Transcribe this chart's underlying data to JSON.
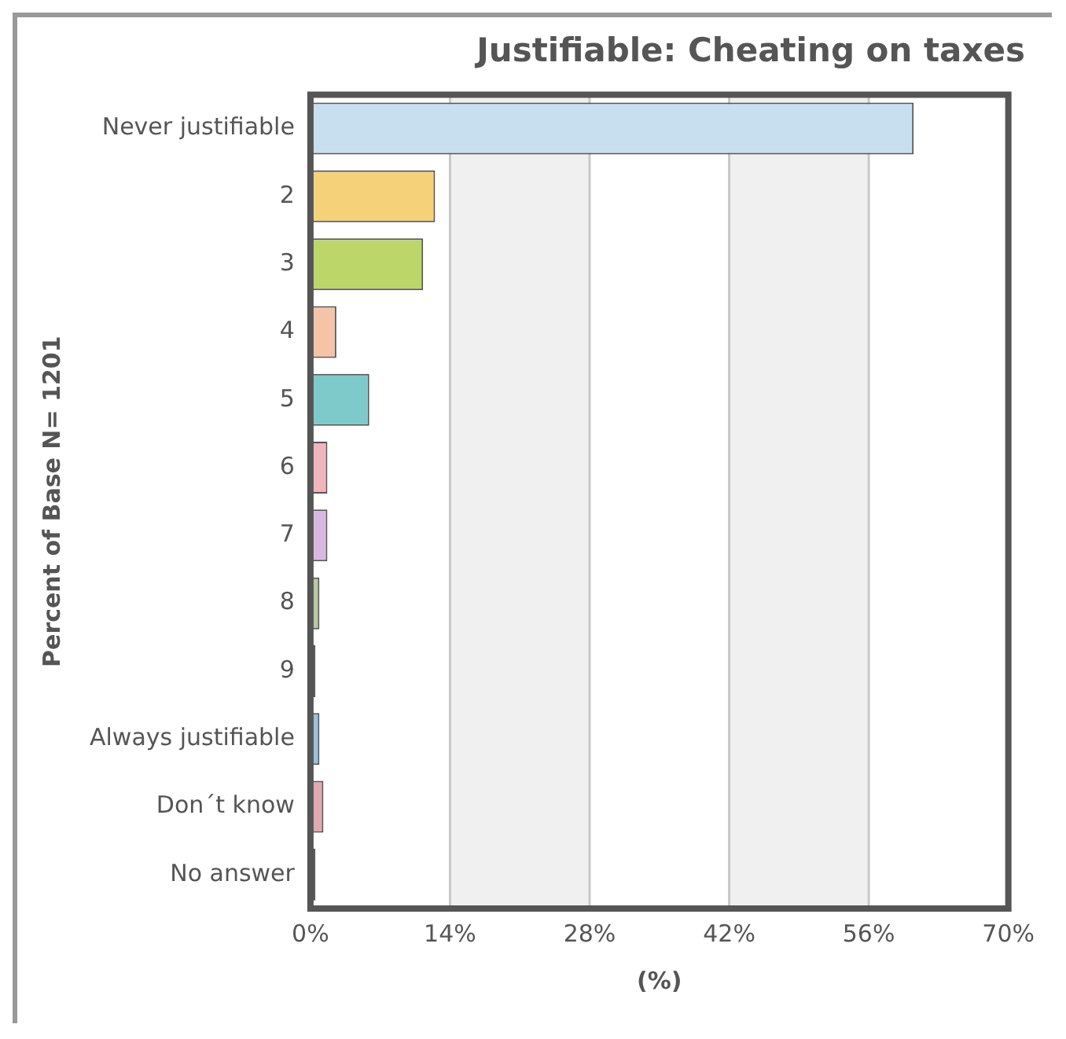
{
  "chart_data": {
    "type": "bar",
    "orientation": "horizontal",
    "title": "Justifiable: Cheating on taxes",
    "xlabel": "(%)",
    "ylabel": "Percent of Base N= 1201",
    "categories": [
      "Never justifiable",
      "2",
      "3",
      "4",
      "5",
      "6",
      "7",
      "8",
      "9",
      "Always justifiable",
      "Don´t know",
      "No answer"
    ],
    "values": [
      60.5,
      12.5,
      11.3,
      2.6,
      5.9,
      1.7,
      1.7,
      0.9,
      0.5,
      0.9,
      1.3,
      0.5
    ],
    "colors": [
      "#c8dff0",
      "#f5d27a",
      "#bcd66a",
      "#f5c4a8",
      "#7ecaca",
      "#f0b4bc",
      "#d8b8e0",
      "#b8c8a0",
      "#222222",
      "#9cc0dc",
      "#e0a8b0",
      "#222222"
    ],
    "xlim": [
      0,
      70
    ],
    "xticks": [
      {
        "value": 0,
        "label": "0%"
      },
      {
        "value": 14,
        "label": "14%"
      },
      {
        "value": 28,
        "label": "28%"
      },
      {
        "value": 42,
        "label": "42%"
      },
      {
        "value": 56,
        "label": "56%"
      },
      {
        "value": 70,
        "label": "70%"
      }
    ],
    "grid": "x",
    "legend": false
  }
}
